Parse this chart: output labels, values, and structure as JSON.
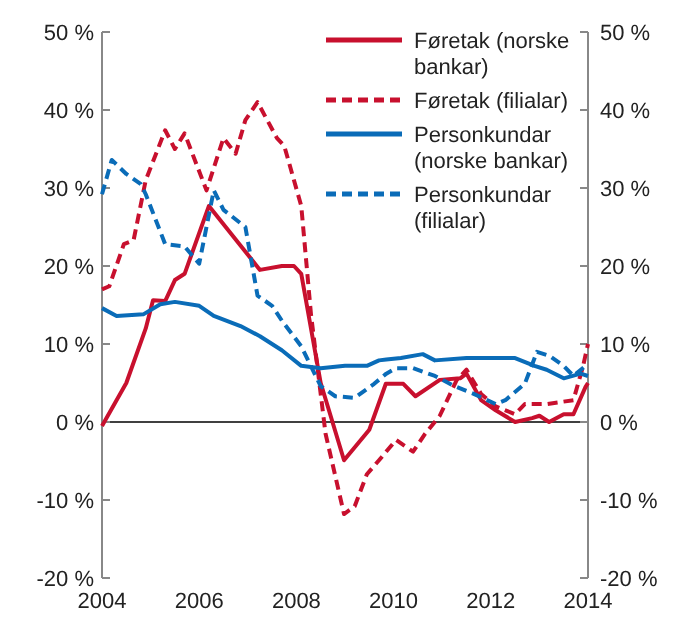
{
  "chart_data": {
    "type": "line",
    "xlim": [
      2004,
      2014
    ],
    "xticks": [
      2004,
      2006,
      2008,
      2010,
      2012,
      2014
    ],
    "ylim": [
      -20,
      50
    ],
    "yticks": [
      {
        "value": -20,
        "label": "-20 %"
      },
      {
        "value": -10,
        "label": "-10 %"
      },
      {
        "value": 0,
        "label": "0 %"
      },
      {
        "value": 10,
        "label": "10 %"
      },
      {
        "value": 20,
        "label": "20 %"
      },
      {
        "value": 30,
        "label": "30 %"
      },
      {
        "value": 40,
        "label": "40 %"
      },
      {
        "value": 50,
        "label": "50 %"
      }
    ],
    "y2lim": [
      -20,
      50
    ],
    "y2ticks": [
      {
        "value": -20,
        "label": "-20 %"
      },
      {
        "value": -10,
        "label": "-10 %"
      },
      {
        "value": 0,
        "label": "0 %"
      },
      {
        "value": 10,
        "label": "10 %"
      },
      {
        "value": 20,
        "label": "20 %"
      },
      {
        "value": 30,
        "label": "30 %"
      },
      {
        "value": 40,
        "label": "40 %"
      },
      {
        "value": 50,
        "label": "50 %"
      }
    ],
    "legend": "top right",
    "grid": false,
    "ref_lines": [
      {
        "axis": "y",
        "value": 0,
        "color": "#000000",
        "line_style": "solid"
      }
    ],
    "series": [
      {
        "name": "Føretak (norske bankar)",
        "color": "#c8102e",
        "line_style": "solid",
        "x": [
          2004,
          2004.5,
          2004.9,
          2005.05,
          2005.3,
          2005.5,
          2005.7,
          2006.2,
          2007.25,
          2007.7,
          2007.95,
          2008.1,
          2008.5,
          2008.98,
          2009.5,
          2009.84,
          2010.2,
          2010.45,
          2010.95,
          2011.37,
          2011.5,
          2011.8,
          2012.1,
          2012.5,
          2012.85,
          2013,
          2013.2,
          2013.5,
          2013.7,
          2013.95,
          2014
        ],
        "values": [
          -0.5,
          5,
          12,
          15.6,
          15.5,
          18.2,
          19,
          27.7,
          19.5,
          20,
          20,
          19,
          5,
          -4.9,
          -1,
          4.9,
          4.9,
          3.3,
          5.4,
          5.6,
          6.2,
          2.8,
          1.5,
          0,
          0.5,
          0.8,
          0,
          1,
          1,
          4.5,
          5
        ]
      },
      {
        "name": "Føretak (filialar)",
        "color": "#c8102e",
        "line_style": "dashed",
        "x": [
          2004,
          2004.15,
          2004.45,
          2004.65,
          2004.9,
          2005.3,
          2005.5,
          2005.7,
          2006.15,
          2006.5,
          2006.75,
          2006.95,
          2007.2,
          2007.6,
          2007.75,
          2008.1,
          2008.3,
          2008.6,
          2008.98,
          2009.2,
          2009.45,
          2009.7,
          2010.05,
          2010.4,
          2010.65,
          2010.95,
          2011.3,
          2011.5,
          2011.8,
          2012.1,
          2012.5,
          2012.7,
          2013.15,
          2013.7,
          2013.9,
          2014
        ],
        "values": [
          17,
          17.4,
          22.8,
          23.3,
          31,
          37.4,
          35,
          37,
          29.7,
          36.4,
          34.4,
          38.7,
          41,
          36.4,
          35.4,
          27.7,
          13.8,
          -1.5,
          -11.8,
          -10.8,
          -6.7,
          -4.9,
          -2.3,
          -3.8,
          -1.5,
          0.8,
          5.4,
          6.7,
          3.6,
          2,
          1,
          2.3,
          2.3,
          2.8,
          7.2,
          10
        ]
      },
      {
        "name": "Personkundar (norske bankar)",
        "color": "#0a6cb8",
        "line_style": "solid",
        "x": [
          2004,
          2004.3,
          2004.85,
          2005.2,
          2005.5,
          2006,
          2006.3,
          2006.85,
          2007.25,
          2007.7,
          2008.1,
          2008.5,
          2009,
          2009.45,
          2009.7,
          2009.85,
          2010.15,
          2010.6,
          2010.85,
          2011.5,
          2011.9,
          2012.5,
          2012.9,
          2013.15,
          2013.5,
          2013.85,
          2014
        ],
        "values": [
          14.6,
          13.6,
          13.8,
          15.1,
          15.4,
          14.9,
          13.6,
          12.3,
          11,
          9.2,
          7.2,
          6.9,
          7.2,
          7.2,
          7.9,
          8,
          8.2,
          8.7,
          7.9,
          8.2,
          8.2,
          8.2,
          7.2,
          6.7,
          5.6,
          6.2,
          5.9
        ]
      },
      {
        "name": "Personkundar (filialar)",
        "color": "#0a6cb8",
        "line_style": "dashed",
        "x": [
          2004,
          2004.2,
          2004.5,
          2004.8,
          2004.9,
          2005.3,
          2005.7,
          2006,
          2006.3,
          2006.5,
          2006.95,
          2007.2,
          2007.5,
          2007.7,
          2008.1,
          2008.5,
          2008.8,
          2009.2,
          2009.6,
          2009.85,
          2010.05,
          2010.4,
          2010.85,
          2011.25,
          2011.65,
          2012.1,
          2012.3,
          2012.7,
          2012.95,
          2013.2,
          2013.5,
          2013.7,
          2013.95,
          2014
        ],
        "values": [
          29.2,
          33.6,
          31.8,
          30.5,
          29.2,
          22.8,
          22.5,
          20.3,
          29.7,
          27.2,
          25,
          16.2,
          14.9,
          13,
          9.7,
          4.6,
          3.3,
          3.1,
          4.9,
          6.2,
          6.9,
          6.9,
          5.9,
          4.6,
          3.6,
          2.3,
          2.8,
          4.9,
          9,
          8.5,
          7.2,
          5.9,
          7.2,
          7
        ]
      }
    ]
  }
}
